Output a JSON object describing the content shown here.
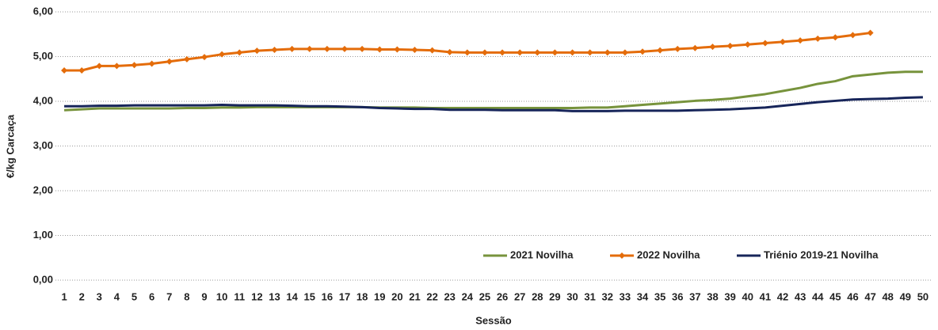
{
  "chart_data": {
    "type": "line",
    "x_label": "Sessão",
    "y_label": "€/kg Carcaça",
    "categories": [
      "1",
      "2",
      "3",
      "4",
      "5",
      "6",
      "7",
      "8",
      "9",
      "10",
      "11",
      "12",
      "13",
      "14",
      "15",
      "16",
      "17",
      "18",
      "19",
      "20",
      "21",
      "22",
      "23",
      "24",
      "25",
      "26",
      "27",
      "28",
      "29",
      "30",
      "31",
      "32",
      "33",
      "34",
      "35",
      "36",
      "37",
      "38",
      "39",
      "40",
      "41",
      "42",
      "43",
      "44",
      "45",
      "46",
      "47",
      "48",
      "49",
      "50"
    ],
    "ylim": [
      0,
      6
    ],
    "yticks": [
      {
        "value": 0,
        "label": "0,00"
      },
      {
        "value": 1,
        "label": "1,00"
      },
      {
        "value": 2,
        "label": "2,00"
      },
      {
        "value": 3,
        "label": "3,00"
      },
      {
        "value": 4,
        "label": "4,00"
      },
      {
        "value": 5,
        "label": "5,00"
      },
      {
        "value": 6,
        "label": "6,00"
      }
    ],
    "grid": true,
    "legend": "lower right",
    "series": [
      {
        "name": "2021 Novilha",
        "color": "#77933c",
        "marker": "none",
        "values": [
          3.8,
          3.82,
          3.84,
          3.84,
          3.84,
          3.84,
          3.84,
          3.85,
          3.85,
          3.86,
          3.86,
          3.87,
          3.87,
          3.87,
          3.87,
          3.87,
          3.87,
          3.87,
          3.86,
          3.86,
          3.86,
          3.85,
          3.85,
          3.85,
          3.85,
          3.85,
          3.85,
          3.85,
          3.85,
          3.85,
          3.86,
          3.86,
          3.89,
          3.92,
          3.95,
          3.98,
          4.01,
          4.03,
          4.06,
          4.11,
          4.16,
          4.23,
          4.3,
          4.39,
          4.45,
          4.56,
          4.6,
          4.64,
          4.66,
          4.66
        ]
      },
      {
        "name": "2022 Novilha",
        "color": "#e46c0a",
        "marker": "diamond",
        "values": [
          4.69,
          4.69,
          4.79,
          4.79,
          4.81,
          4.84,
          4.89,
          4.94,
          4.99,
          5.05,
          5.09,
          5.13,
          5.15,
          5.17,
          5.17,
          5.17,
          5.17,
          5.17,
          5.16,
          5.16,
          5.15,
          5.14,
          5.1,
          5.09,
          5.09,
          5.09,
          5.09,
          5.09,
          5.09,
          5.09,
          5.09,
          5.09,
          5.09,
          5.11,
          5.14,
          5.17,
          5.19,
          5.22,
          5.24,
          5.27,
          5.3,
          5.33,
          5.36,
          5.4,
          5.43,
          5.48,
          5.53,
          null,
          null,
          null
        ]
      },
      {
        "name": "Triénio 2019-21 Novilha",
        "color": "#17255a",
        "marker": "none",
        "values": [
          3.89,
          3.89,
          3.9,
          3.9,
          3.91,
          3.91,
          3.91,
          3.91,
          3.91,
          3.92,
          3.91,
          3.91,
          3.91,
          3.9,
          3.89,
          3.89,
          3.88,
          3.87,
          3.85,
          3.84,
          3.83,
          3.83,
          3.81,
          3.81,
          3.81,
          3.8,
          3.8,
          3.8,
          3.8,
          3.78,
          3.78,
          3.78,
          3.79,
          3.79,
          3.79,
          3.79,
          3.8,
          3.81,
          3.82,
          3.84,
          3.86,
          3.9,
          3.94,
          3.98,
          4.01,
          4.04,
          4.05,
          4.06,
          4.08,
          4.09
        ]
      }
    ]
  }
}
